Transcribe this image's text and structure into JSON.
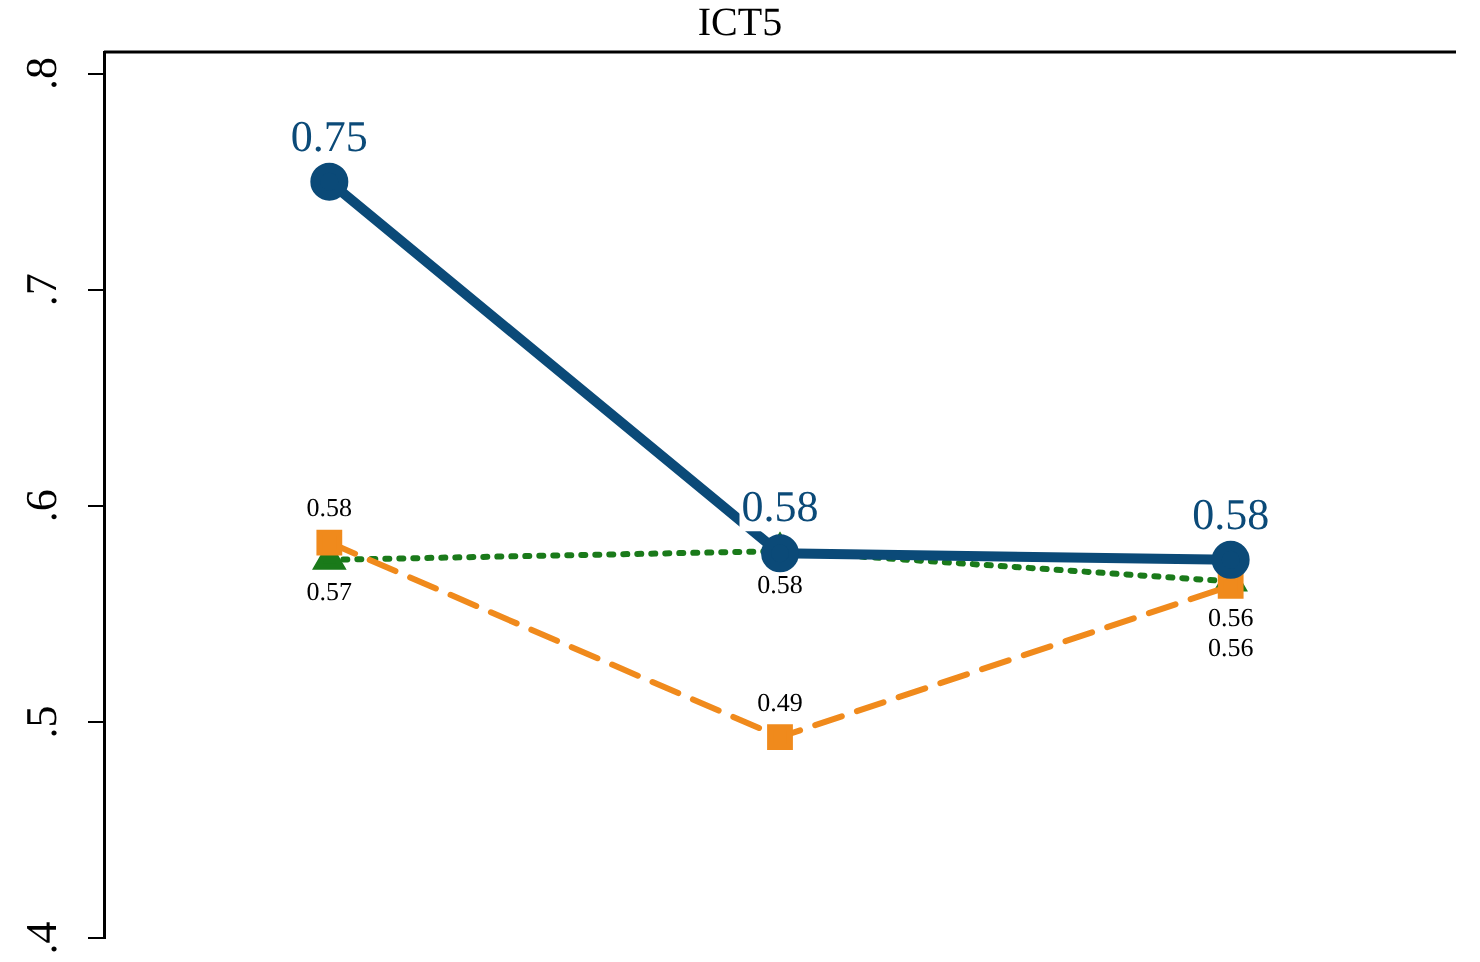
{
  "chart_data": {
    "type": "line",
    "title": "ICT5",
    "categories": [
      null,
      null,
      null
    ],
    "ylim": [
      0.4,
      0.81
    ],
    "yticks": [
      {
        "value": 0.4,
        "label": ".4"
      },
      {
        "value": 0.5,
        "label": ".5"
      },
      {
        "value": 0.6,
        "label": ".6"
      },
      {
        "value": 0.7,
        "label": ".7"
      },
      {
        "value": 0.8,
        "label": ".8"
      }
    ],
    "grid": false,
    "legend": false,
    "tick_labels": "y",
    "series": [
      {
        "color": "#0b4a78",
        "values": [
          0.75,
          0.578,
          0.575
        ],
        "value_labels": [
          "0.75",
          "0.58",
          "0.58"
        ],
        "marker": "circle",
        "line_style": "solid"
      },
      {
        "color": "#f08a1c",
        "values": [
          0.583,
          0.493,
          0.563
        ],
        "value_labels": [
          "0.58",
          "0.49",
          "0.56"
        ],
        "marker": "square",
        "line_style": "dashed"
      },
      {
        "color": "#1a7a1a",
        "values": [
          0.575,
          0.579,
          0.565
        ],
        "value_labels": [
          "0.57",
          "0.58",
          "0.56"
        ],
        "marker": "triangle",
        "line_style": "dotted"
      }
    ]
  }
}
